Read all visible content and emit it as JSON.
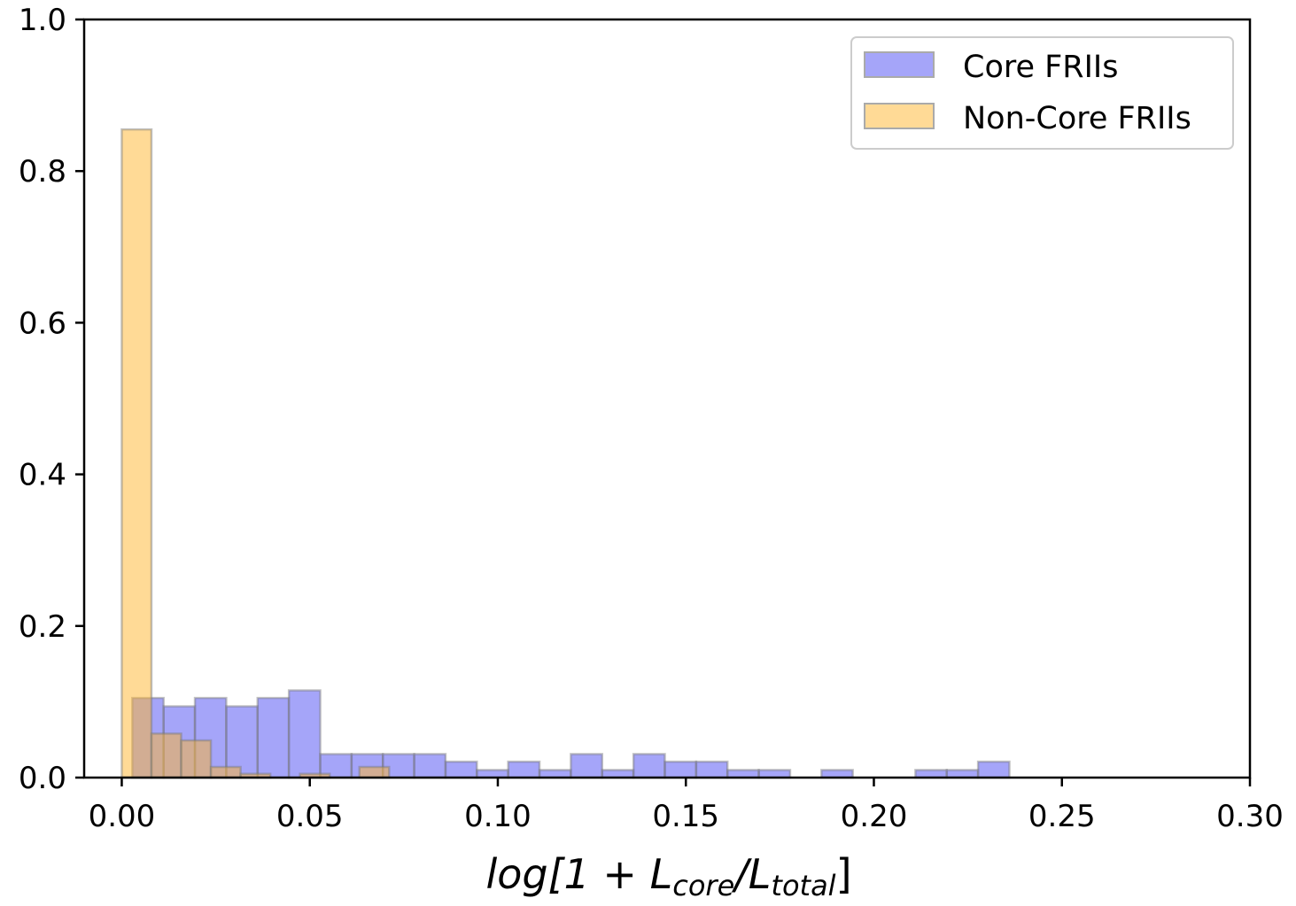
{
  "chart_data": {
    "type": "bar",
    "subtype": "overlapping-histogram",
    "xlabel": "log[1 + L_core/L_total]",
    "xlabel_parts": {
      "pre": "log[1 + ",
      "L1": "L",
      "sub1": "core",
      "slash": "/",
      "L2": "L",
      "sub2": "total",
      "post": "]"
    },
    "xlim": [
      -0.01,
      0.3
    ],
    "ylim": [
      0.0,
      1.0
    ],
    "xticks": [
      "0.00",
      "0.05",
      "0.10",
      "0.15",
      "0.20",
      "0.25",
      "0.30"
    ],
    "xtick_values": [
      0.0,
      0.05,
      0.1,
      0.15,
      0.2,
      0.25,
      0.3
    ],
    "yticks": [
      "0.0",
      "0.2",
      "0.4",
      "0.6",
      "0.8",
      "1.0"
    ],
    "ytick_values": [
      0.0,
      0.2,
      0.4,
      0.6,
      0.8,
      1.0
    ],
    "grid": false,
    "legend_position": "top-right",
    "series": [
      {
        "name": "Core FRIIs",
        "color": "#6464f5",
        "bin_start": 0.0028,
        "bin_width": 0.00833,
        "values": [
          0.105,
          0.094,
          0.105,
          0.094,
          0.105,
          0.115,
          0.031,
          0.031,
          0.031,
          0.031,
          0.021,
          0.01,
          0.021,
          0.01,
          0.031,
          0.01,
          0.031,
          0.021,
          0.021,
          0.01,
          0.01,
          0,
          0.01,
          0,
          0,
          0.01,
          0.01,
          0.021
        ]
      },
      {
        "name": "Non-Core FRIIs",
        "color": "#ffb52e",
        "bin_start": 0.0,
        "bin_width": 0.0079,
        "values": [
          0.855,
          0.058,
          0.049,
          0.014,
          0.005,
          0,
          0.005,
          0,
          0.014
        ]
      }
    ]
  }
}
